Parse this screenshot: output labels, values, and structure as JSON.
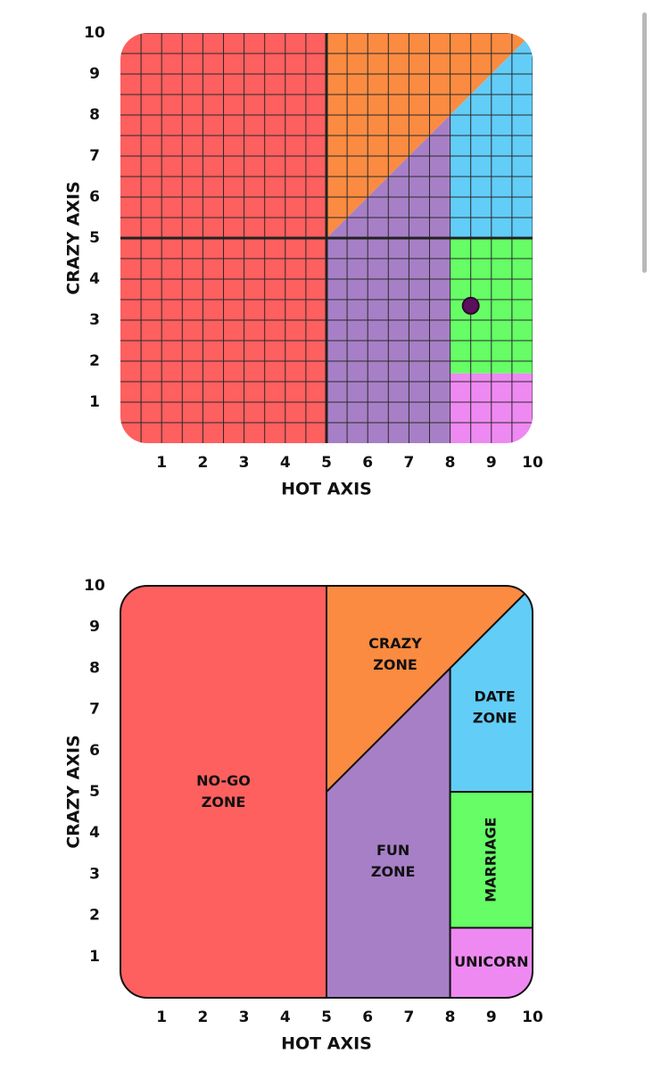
{
  "chart_data": [
    {
      "type": "scatter",
      "xlabel": "HOT AXIS",
      "ylabel": "CRAZY AXIS",
      "xlim": [
        0,
        10
      ],
      "ylim": [
        0,
        10
      ],
      "xticks": [
        1,
        2,
        3,
        4,
        5,
        6,
        7,
        8,
        9,
        10
      ],
      "yticks": [
        1,
        2,
        3,
        4,
        5,
        6,
        7,
        8,
        9,
        10
      ],
      "grid": true,
      "minor_grid": [
        0.5,
        1.5,
        2.5,
        3.5,
        4.5,
        5.5,
        6.5,
        7.5,
        8.5,
        9.5
      ],
      "vlines": [
        5
      ],
      "hlines": [
        5
      ],
      "zones": [
        {
          "color": "#fe5f5f",
          "points": [
            [
              0,
              0
            ],
            [
              5,
              0
            ],
            [
              5,
              10
            ],
            [
              0,
              10
            ]
          ]
        },
        {
          "color": "#fb8b41",
          "points": [
            [
              5,
              5
            ],
            [
              5,
              10
            ],
            [
              10,
              10
            ]
          ]
        },
        {
          "color": "#a77fc6",
          "points": [
            [
              5,
              0
            ],
            [
              8,
              0
            ],
            [
              8,
              8
            ],
            [
              5,
              5
            ]
          ]
        },
        {
          "color": "#62cdf7",
          "points": [
            [
              8,
              5
            ],
            [
              10,
              5
            ],
            [
              10,
              10
            ],
            [
              8,
              8
            ]
          ]
        },
        {
          "color": "#66fd66",
          "points": [
            [
              8,
              1.7
            ],
            [
              10,
              1.7
            ],
            [
              10,
              5
            ],
            [
              8,
              5
            ]
          ]
        },
        {
          "color": "#ee89f2",
          "points": [
            [
              8,
              0
            ],
            [
              10,
              0
            ],
            [
              10,
              1.7
            ],
            [
              8,
              1.7
            ]
          ]
        }
      ],
      "x": [
        8.5
      ],
      "y": [
        3.35
      ],
      "color": "#5c0f5c"
    },
    {
      "type": "zones",
      "xlabel": "HOT AXIS",
      "ylabel": "CRAZY AXIS",
      "xlim": [
        0,
        10
      ],
      "ylim": [
        0,
        10
      ],
      "xticks": [
        1,
        2,
        3,
        4,
        5,
        6,
        7,
        8,
        9,
        10
      ],
      "yticks": [
        1,
        2,
        3,
        4,
        5,
        6,
        7,
        8,
        9,
        10
      ],
      "grid": false,
      "zones": [
        {
          "name": "NO-GO ZONE",
          "color": "#fe5f5f",
          "points": [
            [
              0,
              0
            ],
            [
              5,
              0
            ],
            [
              5,
              10
            ],
            [
              0,
              10
            ]
          ]
        },
        {
          "name": "CRAZY ZONE",
          "color": "#fb8b41",
          "points": [
            [
              5,
              5
            ],
            [
              5,
              10
            ],
            [
              10,
              10
            ]
          ]
        },
        {
          "name": "FUN ZONE",
          "color": "#a77fc6",
          "points": [
            [
              5,
              0
            ],
            [
              8,
              0
            ],
            [
              8,
              8
            ],
            [
              5,
              5
            ]
          ]
        },
        {
          "name": "DATE ZONE",
          "color": "#62cdf7",
          "points": [
            [
              8,
              5
            ],
            [
              10,
              5
            ],
            [
              10,
              10
            ],
            [
              8,
              8
            ]
          ]
        },
        {
          "name": "MARRIAGE",
          "color": "#66fd66",
          "vertical": true,
          "points": [
            [
              8,
              1.7
            ],
            [
              10,
              1.7
            ],
            [
              10,
              5
            ],
            [
              8,
              5
            ]
          ]
        },
        {
          "name": "UNICORN",
          "color": "#ee89f2",
          "points": [
            [
              8,
              0
            ],
            [
              10,
              0
            ],
            [
              10,
              1.7
            ],
            [
              8,
              1.7
            ]
          ]
        }
      ]
    }
  ]
}
